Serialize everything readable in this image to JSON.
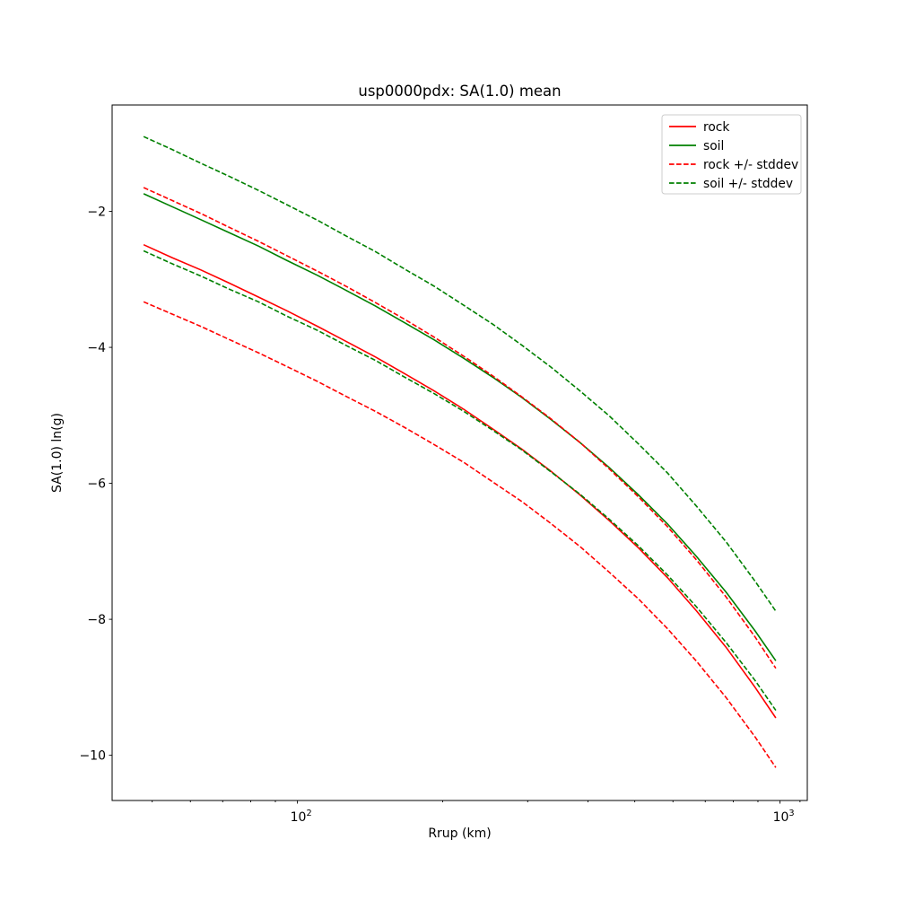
{
  "title": "usp0000pdx: SA(1.0) mean",
  "chart_data": {
    "type": "line",
    "title": "usp0000pdx: SA(1.0) mean",
    "xlabel": "Rrup (km)",
    "ylabel": "SA(1.0) ln(g)",
    "x_scale": "log",
    "xlim": [
      41.3,
      1139
    ],
    "ylim": [
      -10.665,
      -0.435
    ],
    "grid": false,
    "background": "#ffffff",
    "x": [
      48,
      55,
      63,
      72,
      83,
      95,
      110,
      126,
      145,
      167,
      192,
      221,
      254,
      292,
      335,
      385,
      443,
      509,
      585,
      672,
      773,
      888,
      980
    ],
    "series": [
      {
        "id": "rock",
        "label": "rock",
        "color": "#ff0000",
        "style": "solid",
        "values": [
          -2.49,
          -2.68,
          -2.86,
          -3.05,
          -3.26,
          -3.46,
          -3.69,
          -3.91,
          -4.14,
          -4.39,
          -4.64,
          -4.91,
          -5.2,
          -5.5,
          -5.82,
          -6.17,
          -6.55,
          -6.95,
          -7.39,
          -7.88,
          -8.41,
          -9.0,
          -9.45
        ]
      },
      {
        "id": "soil",
        "label": "soil",
        "color": "#008000",
        "style": "solid",
        "values": [
          -1.74,
          -1.93,
          -2.12,
          -2.31,
          -2.51,
          -2.72,
          -2.94,
          -3.16,
          -3.39,
          -3.64,
          -3.89,
          -4.16,
          -4.44,
          -4.74,
          -5.06,
          -5.4,
          -5.77,
          -6.17,
          -6.6,
          -7.08,
          -7.6,
          -8.17,
          -8.61
        ]
      },
      {
        "id": "rock-plus-stddev",
        "label": "rock + stddev",
        "color": "#ff0000",
        "style": "dashed",
        "values": [
          -1.65,
          -1.84,
          -2.03,
          -2.23,
          -2.44,
          -2.65,
          -2.88,
          -3.1,
          -3.34,
          -3.59,
          -3.85,
          -4.13,
          -4.42,
          -4.73,
          -5.05,
          -5.4,
          -5.79,
          -6.2,
          -6.64,
          -7.13,
          -7.67,
          -8.26,
          -8.72
        ]
      },
      {
        "id": "rock-minus-stddev",
        "label": "rock - stddev",
        "color": "#ff0000",
        "style": "dashed",
        "values": [
          -3.33,
          -3.51,
          -3.69,
          -3.88,
          -4.08,
          -4.28,
          -4.5,
          -4.72,
          -4.94,
          -5.18,
          -5.43,
          -5.69,
          -5.98,
          -6.27,
          -6.59,
          -6.93,
          -7.31,
          -7.7,
          -8.14,
          -8.62,
          -9.15,
          -9.73,
          -10.18
        ]
      },
      {
        "id": "soil-plus-stddev",
        "label": "soil + stddev",
        "color": "#008000",
        "style": "dashed",
        "values": [
          -0.9,
          -1.09,
          -1.29,
          -1.48,
          -1.69,
          -1.9,
          -2.13,
          -2.36,
          -2.59,
          -2.85,
          -3.1,
          -3.38,
          -3.66,
          -3.97,
          -4.29,
          -4.64,
          -5.01,
          -5.42,
          -5.85,
          -6.34,
          -6.86,
          -7.44,
          -7.88
        ]
      },
      {
        "id": "soil-minus-stddev",
        "label": "soil - stddev",
        "color": "#008000",
        "style": "dashed",
        "values": [
          -2.58,
          -2.77,
          -2.95,
          -3.14,
          -3.33,
          -3.54,
          -3.75,
          -3.97,
          -4.19,
          -4.44,
          -4.68,
          -4.94,
          -5.22,
          -5.51,
          -5.83,
          -6.16,
          -6.53,
          -6.92,
          -7.35,
          -7.82,
          -8.34,
          -8.9,
          -9.34
        ]
      }
    ],
    "yticks": [
      {
        "value": -2,
        "label": "−2"
      },
      {
        "value": -4,
        "label": "−4"
      },
      {
        "value": -6,
        "label": "−6"
      },
      {
        "value": -8,
        "label": "−8"
      },
      {
        "value": -10,
        "label": "−10"
      }
    ],
    "xticks_major": [
      {
        "value": 100,
        "base": "10",
        "exp": "2"
      },
      {
        "value": 1000,
        "base": "10",
        "exp": "3"
      }
    ],
    "xticks_minor": [
      50,
      60,
      70,
      80,
      90,
      200,
      300,
      400,
      500,
      600,
      700,
      800,
      900,
      1100
    ],
    "legend": {
      "position": "upper right",
      "entries": [
        {
          "label": "rock",
          "color": "#ff0000",
          "style": "solid"
        },
        {
          "label": "soil",
          "color": "#008000",
          "style": "solid"
        },
        {
          "label": "rock +/- stddev",
          "color": "#ff0000",
          "style": "dashed"
        },
        {
          "label": "soil +/- stddev",
          "color": "#008000",
          "style": "dashed"
        }
      ]
    }
  }
}
